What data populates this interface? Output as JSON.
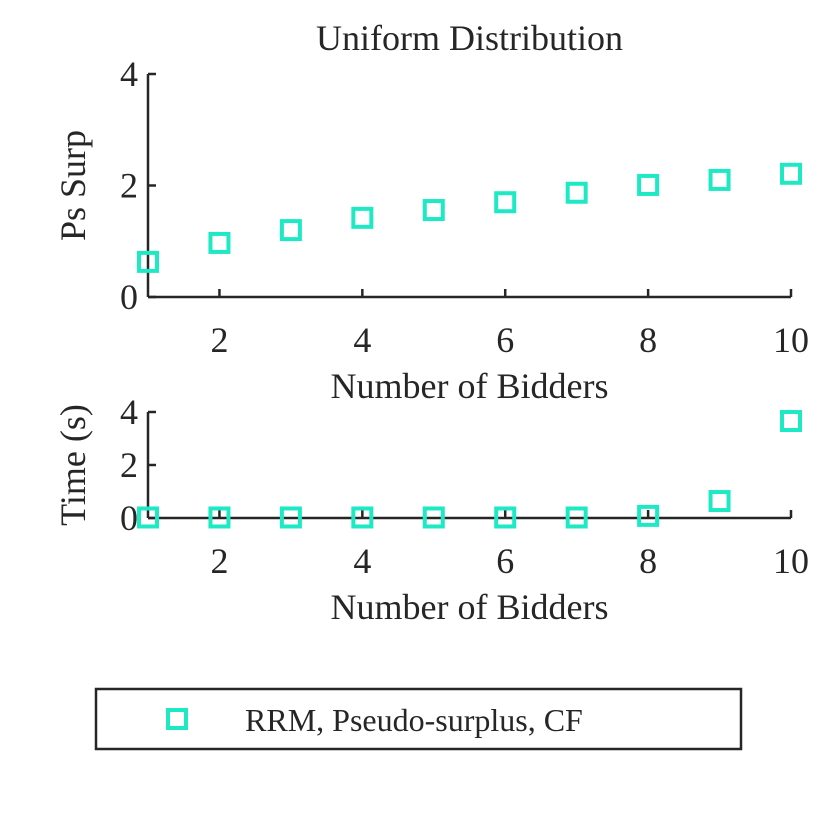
{
  "chart_data": [
    {
      "type": "scatter",
      "title": "Uniform Distribution",
      "xlabel": "Number of Bidders",
      "ylabel": "Ps Surp",
      "x": [
        1,
        2,
        3,
        4,
        5,
        6,
        7,
        8,
        9,
        10
      ],
      "series": [
        {
          "name": "RRM, Pseudo-surplus, CF",
          "color": "#1de9c4",
          "values": [
            0.63,
            0.97,
            1.2,
            1.42,
            1.56,
            1.7,
            1.87,
            2.01,
            2.1,
            2.21
          ]
        }
      ],
      "xlim": [
        1,
        10
      ],
      "xticks": [
        2,
        4,
        6,
        8,
        10
      ],
      "ylim": [
        0,
        4
      ],
      "yticks": [
        0,
        2,
        4
      ]
    },
    {
      "type": "scatter",
      "xlabel": "Number of Bidders",
      "ylabel": "Time (s)",
      "x": [
        1,
        2,
        3,
        4,
        5,
        6,
        7,
        8,
        9,
        10
      ],
      "series": [
        {
          "color": "#1de9c4",
          "values": [
            0.02,
            0.02,
            0.02,
            0.02,
            0.02,
            0.02,
            0.02,
            0.08,
            0.64,
            3.66
          ]
        }
      ],
      "xlim": [
        1,
        10
      ],
      "xticks": [
        2,
        4,
        6,
        8,
        10
      ],
      "ylim": [
        0,
        4
      ],
      "yticks": [
        0,
        2,
        4
      ]
    }
  ]
}
